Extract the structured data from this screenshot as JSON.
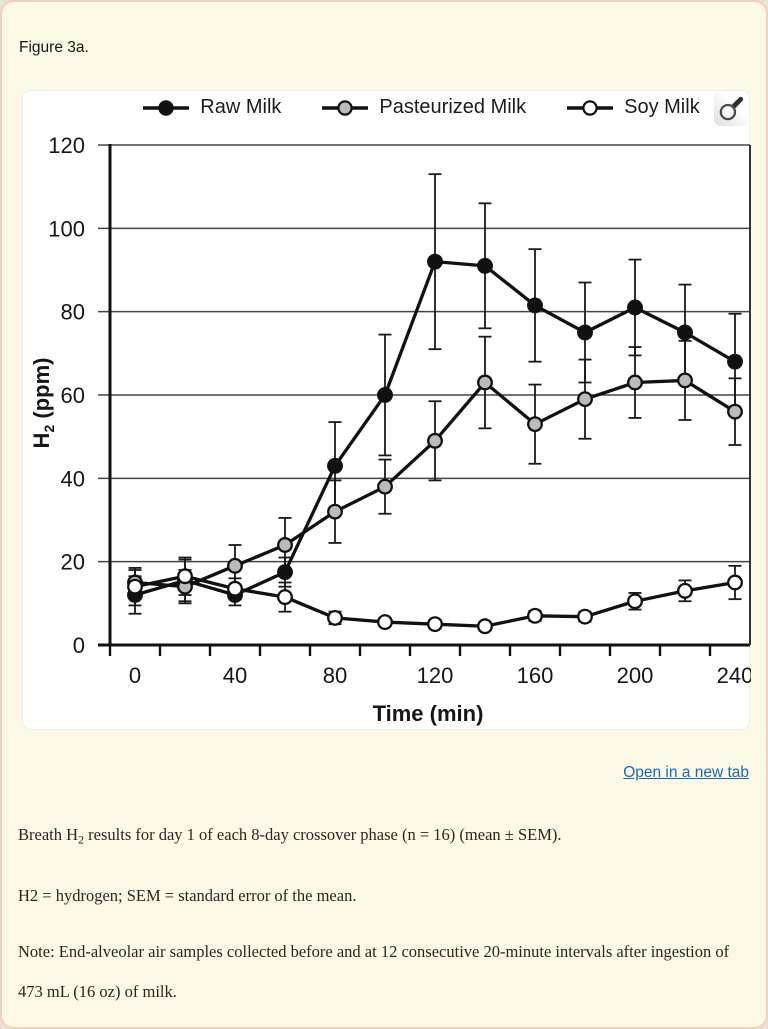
{
  "figure": {
    "label": "Figure 3a."
  },
  "chart_card": {
    "open_link_label": "Open in a new tab"
  },
  "icons": {
    "zoom": "magnifier-icon"
  },
  "colors": {
    "page_background": "#fdf9e7",
    "page_border": "#f1d0bf",
    "card_background": "#ffffff",
    "link_blue": "#1a66b8",
    "ink": "#161616",
    "raw_milk_marker": "#111111",
    "pasteurized_milk_marker": "#bbbbbb",
    "soy_milk_marker": "#ffffff"
  },
  "captions": {
    "line1": {
      "pre": "Breath H",
      "sub": "2",
      "post": " results for day 1 of each 8-day crossover phase (n = 16) (mean ± SEM)."
    },
    "line2": "H2 = hydrogen; SEM = standard error of the mean.",
    "note": "Note: End-alveolar air samples collected before and at 12 consecutive 20-minute intervals after ingestion of 473 mL (16 oz) of milk."
  },
  "chart_data": {
    "type": "line",
    "title": "",
    "xlabel": {
      "text": "Time (min)"
    },
    "ylabel": {
      "pre": "H",
      "sub": "2",
      "post": " (ppm)"
    },
    "x": [
      0,
      20,
      40,
      60,
      80,
      100,
      120,
      140,
      160,
      180,
      200,
      220,
      240
    ],
    "ylim": [
      0,
      120
    ],
    "xlim_min": [
      -10,
      250
    ],
    "yticks": [
      0,
      20,
      40,
      60,
      80,
      100,
      120
    ],
    "xtick_labels": [
      0,
      40,
      80,
      120,
      160,
      200,
      240
    ],
    "xtick_minor_start": -10,
    "xtick_minor_step": 20,
    "xtick_minor_end": 230,
    "grid": "horizontal lines at every 20 ppm",
    "legend_position": "top",
    "error_bars": "mean ± SEM",
    "series": [
      {
        "name": "Raw Milk",
        "marker": "filled-black-circle",
        "line_color": "#111111",
        "marker_fill": "#111111",
        "values": [
          12,
          15.5,
          12,
          17.5,
          43,
          60,
          92,
          91,
          81.5,
          75,
          81,
          75,
          68
        ],
        "sem": [
          4.5,
          5,
          2.5,
          3.5,
          10.5,
          14.5,
          21,
          15,
          13.5,
          12,
          11.5,
          11.5,
          11.5
        ]
      },
      {
        "name": "Pasteurized Milk",
        "marker": "filled-gray-circle",
        "line_color": "#111111",
        "marker_fill": "#bbbbbb",
        "values": [
          15,
          14,
          19,
          24,
          32,
          38,
          49,
          63,
          53,
          59,
          63,
          63.5,
          56
        ],
        "sem": [
          3,
          4,
          5,
          6.5,
          7.5,
          6.5,
          9.5,
          11,
          9.5,
          9.5,
          8.5,
          9.5,
          8
        ]
      },
      {
        "name": "Soy Milk",
        "marker": "open-white-circle",
        "line_color": "#111111",
        "marker_fill": "#ffffff",
        "values": [
          14,
          16.5,
          13.5,
          11.5,
          6.5,
          5.5,
          5,
          4.5,
          7,
          6.8,
          10.5,
          13,
          15
        ],
        "sem": [
          4.5,
          4.5,
          2.5,
          3.5,
          1.5,
          1,
          1,
          1,
          1.2,
          1.2,
          2,
          2.5,
          4
        ]
      }
    ]
  }
}
